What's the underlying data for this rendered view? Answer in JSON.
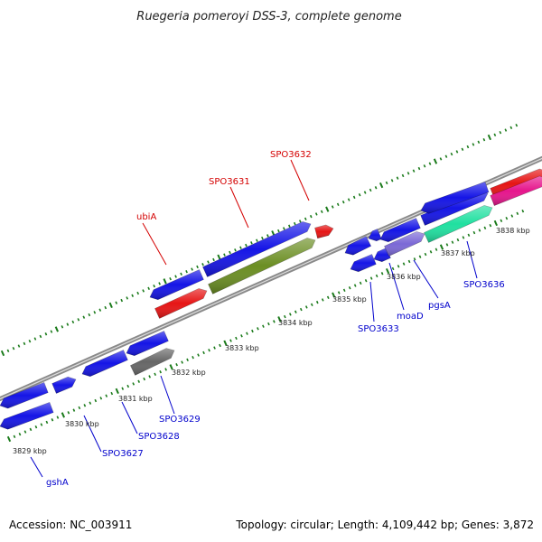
{
  "title": "Ruegeria pomeroyi DSS-3, complete genome",
  "footer": {
    "accession": "Accession: NC_003911",
    "summary": "Topology: circular; Length: 4,109,442 bp; Genes: 3,872"
  },
  "colors": {
    "backbone": "#888888",
    "ticks": "#1a7a1a",
    "label_forward": "#d40000",
    "label_reverse": "#0000cc"
  },
  "ruler": {
    "labels": [
      "3829 kbp",
      "3830 kbp",
      "3831 kbp",
      "3832 kbp",
      "3833 kbp",
      "3834 kbp",
      "3835 kbp",
      "3836 kbp",
      "3837 kbp",
      "3838 kbp"
    ]
  },
  "gene_labels": {
    "forward": [
      "ubiA",
      "SPO3631",
      "SPO3632"
    ],
    "reverse": [
      "gshA",
      "SPO3627",
      "SPO3628",
      "SPO3629",
      "SPO3633",
      "moaD",
      "pgsA",
      "SPO3636"
    ]
  },
  "features": [
    {
      "strand": "forward",
      "color": "#1515e6",
      "direction": "reverse"
    },
    {
      "strand": "forward",
      "color": "#1515e6",
      "direction": "forward"
    },
    {
      "strand": "forward",
      "color": "#e61515",
      "direction": "forward"
    },
    {
      "strand": "forward",
      "color": "#6b8e23",
      "direction": "forward"
    },
    {
      "strand": "forward",
      "color": "#e61515",
      "direction": "forward"
    },
    {
      "strand": "forward",
      "color": "#e61515",
      "direction": "forward"
    },
    {
      "strand": "forward",
      "color": "#1515e6",
      "direction": "reverse"
    },
    {
      "strand": "forward",
      "color": "#1515e6",
      "direction": "forward"
    },
    {
      "strand": "forward",
      "color": "#1515e6",
      "direction": "reverse"
    },
    {
      "strand": "forward",
      "color": "#1515e6",
      "direction": "reverse"
    },
    {
      "strand": "forward",
      "color": "#1515e6",
      "direction": "reverse"
    },
    {
      "strand": "forward",
      "color": "#1515e6",
      "direction": "reverse"
    },
    {
      "strand": "forward",
      "color": "#e6158c",
      "direction": "forward"
    },
    {
      "strand": "reverse",
      "color": "#1515e6",
      "direction": "reverse"
    },
    {
      "strand": "reverse",
      "color": "#666666",
      "direction": "forward"
    },
    {
      "strand": "reverse",
      "color": "#1515e6",
      "direction": "reverse"
    },
    {
      "strand": "reverse",
      "color": "#1515e6",
      "direction": "reverse"
    },
    {
      "strand": "reverse",
      "color": "#7b68d6",
      "direction": "forward"
    },
    {
      "strand": "reverse",
      "color": "#20e0a0",
      "direction": "forward"
    },
    {
      "strand": "reverse",
      "color": "#1515e6",
      "direction": "forward"
    }
  ]
}
